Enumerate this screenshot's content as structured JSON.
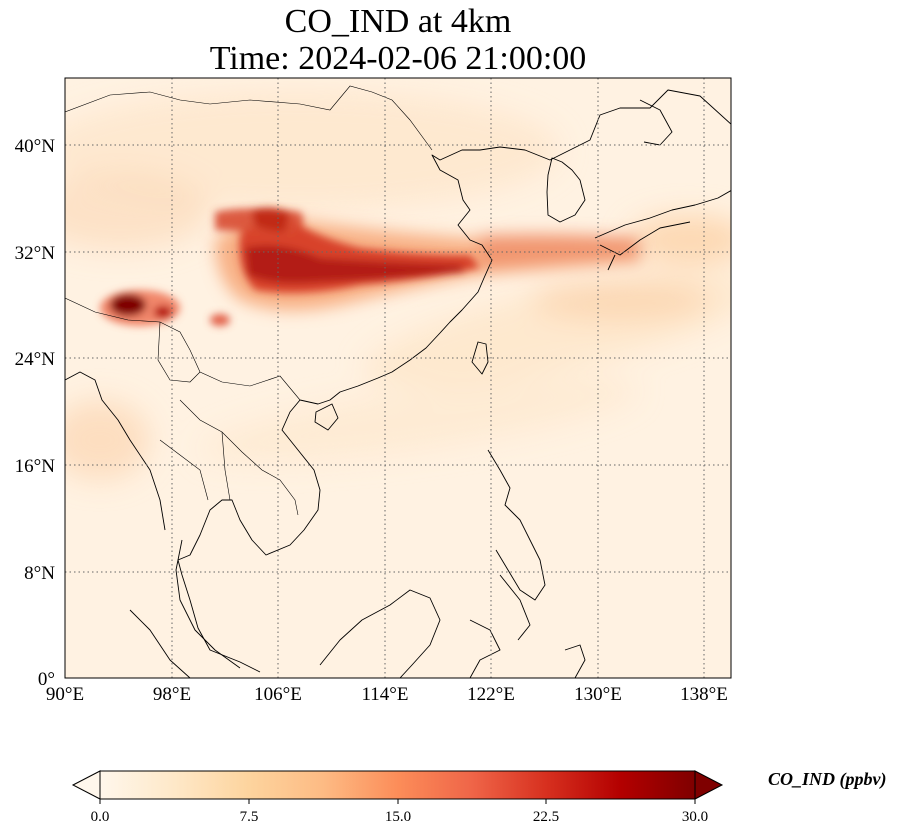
{
  "title": {
    "line1": "CO_IND at 4km",
    "line2": "Time: 2024-02-06 21:00:00"
  },
  "map": {
    "lon_ticks": [
      "90°E",
      "98°E",
      "106°E",
      "114°E",
      "122°E",
      "130°E",
      "138°E"
    ],
    "lat_ticks": [
      "0°",
      "8°N",
      "16°N",
      "24°N",
      "32°N",
      "40°N"
    ],
    "extent": {
      "lon": [
        90,
        140
      ],
      "lat": [
        0,
        45
      ]
    },
    "gridlines": true,
    "colormap": "OrRd"
  },
  "colorbar": {
    "label": "CO_IND (ppbv)",
    "ticks": [
      "0.0",
      "7.5",
      "15.0",
      "22.5",
      "30.0"
    ],
    "range": [
      0,
      30
    ],
    "extend": "both",
    "colors": [
      "#fff7ec",
      "#fee8c8",
      "#fdd49e",
      "#fdbb84",
      "#fc8d59",
      "#ef6548",
      "#d7301f",
      "#b30000",
      "#7f0000"
    ]
  }
}
